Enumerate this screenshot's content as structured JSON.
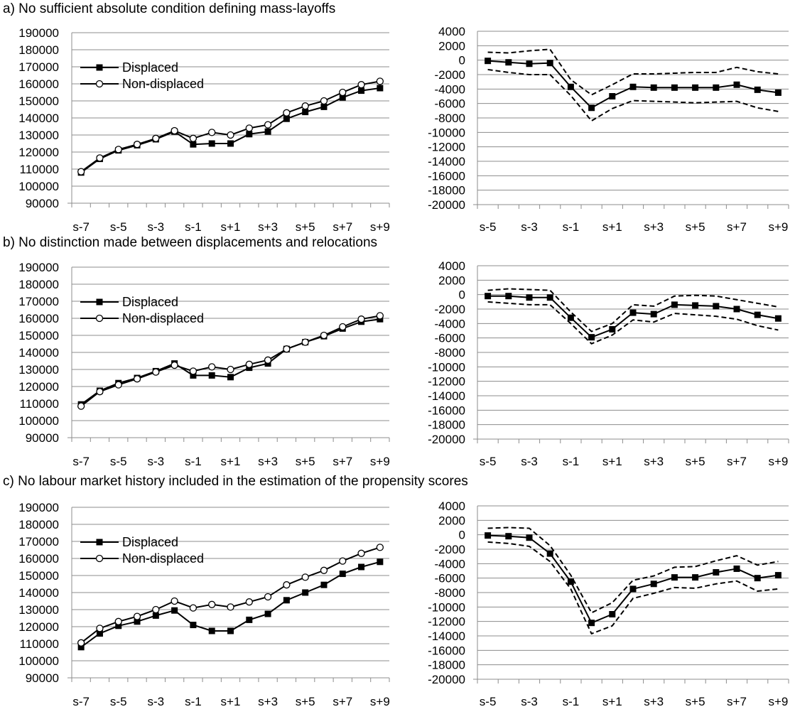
{
  "panels": [
    {
      "title": "a) No sufficient absolute condition defining mass-layoffs"
    },
    {
      "title": "b) No distinction made between displacements and relocations"
    },
    {
      "title": "c) No labour market history included in the estimation of the propensity scores"
    }
  ],
  "chart_data": [
    {
      "type": "line",
      "panel": "a",
      "x": [
        "s-7",
        "s-6",
        "s-5",
        "s-4",
        "s-3",
        "s-2",
        "s-1",
        "s",
        "s+1",
        "s+2",
        "s+3",
        "s+4",
        "s+5",
        "s+6",
        "s+7",
        "s+8",
        "s+9"
      ],
      "x_tick_labels": [
        "s-7",
        "s-5",
        "s-3",
        "s-1",
        "s+1",
        "s+3",
        "s+5",
        "s+7",
        "s+9"
      ],
      "y_ticks": [
        90000,
        100000,
        110000,
        120000,
        130000,
        140000,
        150000,
        160000,
        170000,
        180000,
        190000
      ],
      "ylim": [
        90000,
        190000
      ],
      "grid": true,
      "legend_position": "top-left",
      "series": [
        {
          "name": "Displaced",
          "marker": "filled-square",
          "values": [
            108000,
            116000,
            121000,
            124000,
            127500,
            132000,
            124500,
            125000,
            125000,
            130500,
            132000,
            139500,
            143500,
            146500,
            152000,
            156000,
            157500
          ]
        },
        {
          "name": "Non-displaced",
          "marker": "open-circle",
          "values": [
            108500,
            116500,
            121500,
            124500,
            128000,
            132500,
            128000,
            131500,
            130000,
            134000,
            136000,
            143000,
            147000,
            150000,
            155000,
            159500,
            161500
          ]
        }
      ]
    },
    {
      "type": "line",
      "panel": "a",
      "x": [
        "s-5",
        "s-4",
        "s-3",
        "s-2",
        "s-1",
        "s",
        "s+1",
        "s+2",
        "s+3",
        "s+4",
        "s+5",
        "s+6",
        "s+7",
        "s+8",
        "s+9"
      ],
      "x_tick_labels": [
        "s-5",
        "s-3",
        "s-1",
        "s+1",
        "s+3",
        "s+5",
        "s+7",
        "s+9"
      ],
      "y_ticks": [
        4000,
        2000,
        0,
        -2000,
        -4000,
        -6000,
        -8000,
        -10000,
        -12000,
        -14000,
        -16000,
        -18000,
        -20000
      ],
      "ylim": [
        -20000,
        4000
      ],
      "grid": true,
      "series": [
        {
          "style": "solid",
          "marker": "filled-square",
          "values": [
            -100,
            -300,
            -500,
            -400,
            -3700,
            -6600,
            -5000,
            -3700,
            -3800,
            -3800,
            -3800,
            -3800,
            -3400,
            -4100,
            -4500
          ]
        },
        {
          "style": "dashed",
          "values": [
            1100,
            1000,
            1300,
            1500,
            -2700,
            -4800,
            -3400,
            -1900,
            -1900,
            -1800,
            -1700,
            -1700,
            -1000,
            -1600,
            -1900
          ]
        },
        {
          "style": "dashed",
          "values": [
            -1300,
            -1700,
            -2000,
            -2000,
            -4900,
            -8400,
            -6700,
            -5600,
            -5700,
            -5800,
            -5900,
            -5800,
            -5700,
            -6600,
            -7100
          ]
        }
      ]
    },
    {
      "type": "line",
      "panel": "b",
      "x": [
        "s-7",
        "s-6",
        "s-5",
        "s-4",
        "s-3",
        "s-2",
        "s-1",
        "s",
        "s+1",
        "s+2",
        "s+3",
        "s+4",
        "s+5",
        "s+6",
        "s+7",
        "s+8",
        "s+9"
      ],
      "x_tick_labels": [
        "s-7",
        "s-5",
        "s-3",
        "s-1",
        "s+1",
        "s+3",
        "s+5",
        "s+7",
        "s+9"
      ],
      "y_ticks": [
        90000,
        100000,
        110000,
        120000,
        130000,
        140000,
        150000,
        160000,
        170000,
        180000,
        190000
      ],
      "ylim": [
        90000,
        190000
      ],
      "grid": true,
      "legend_position": "top-left",
      "series": [
        {
          "name": "Displaced",
          "marker": "filled-square",
          "values": [
            109500,
            117500,
            122000,
            125000,
            129000,
            133500,
            126500,
            126500,
            125500,
            131000,
            133500,
            142000,
            146000,
            149500,
            154000,
            158000,
            159500
          ]
        },
        {
          "name": "Non-displaced",
          "marker": "open-circle",
          "values": [
            108500,
            117000,
            121000,
            124500,
            128500,
            132500,
            129000,
            131500,
            130000,
            133000,
            135500,
            142000,
            146000,
            150000,
            155000,
            159500,
            161500
          ]
        }
      ]
    },
    {
      "type": "line",
      "panel": "b",
      "x": [
        "s-5",
        "s-4",
        "s-3",
        "s-2",
        "s-1",
        "s",
        "s+1",
        "s+2",
        "s+3",
        "s+4",
        "s+5",
        "s+6",
        "s+7",
        "s+8",
        "s+9"
      ],
      "x_tick_labels": [
        "s-5",
        "s-3",
        "s-1",
        "s+1",
        "s+3",
        "s+5",
        "s+7",
        "s+9"
      ],
      "y_ticks": [
        4000,
        2000,
        0,
        -2000,
        -4000,
        -6000,
        -8000,
        -10000,
        -12000,
        -14000,
        -16000,
        -18000,
        -20000
      ],
      "ylim": [
        -20000,
        4000
      ],
      "grid": true,
      "series": [
        {
          "style": "solid",
          "marker": "filled-square",
          "values": [
            -200,
            -200,
            -400,
            -400,
            -3200,
            -5900,
            -4800,
            -2500,
            -2700,
            -1400,
            -1500,
            -1600,
            -2000,
            -2800,
            -3300
          ]
        },
        {
          "style": "dashed",
          "values": [
            600,
            800,
            700,
            600,
            -2400,
            -5100,
            -4000,
            -1400,
            -1600,
            -200,
            -100,
            -200,
            -700,
            -1200,
            -1700
          ]
        },
        {
          "style": "dashed",
          "values": [
            -1000,
            -1200,
            -1400,
            -1400,
            -4000,
            -6800,
            -5600,
            -3500,
            -3800,
            -2600,
            -2800,
            -3000,
            -3400,
            -4300,
            -4900
          ]
        }
      ]
    },
    {
      "type": "line",
      "panel": "c",
      "x": [
        "s-7",
        "s-6",
        "s-5",
        "s-4",
        "s-3",
        "s-2",
        "s-1",
        "s",
        "s+1",
        "s+2",
        "s+3",
        "s+4",
        "s+5",
        "s+6",
        "s+7",
        "s+8",
        "s+9"
      ],
      "x_tick_labels": [
        "s-7",
        "s-5",
        "s-3",
        "s-1",
        "s+1",
        "s+3",
        "s+5",
        "s+7",
        "s+9"
      ],
      "y_ticks": [
        90000,
        100000,
        110000,
        120000,
        130000,
        140000,
        150000,
        160000,
        170000,
        180000,
        190000
      ],
      "ylim": [
        90000,
        190000
      ],
      "grid": true,
      "legend_position": "top-left",
      "series": [
        {
          "name": "Displaced",
          "marker": "filled-square",
          "values": [
            108000,
            116000,
            120500,
            123000,
            126500,
            129500,
            121000,
            117500,
            117500,
            124000,
            127500,
            135500,
            140000,
            144500,
            151000,
            155000,
            158000
          ]
        },
        {
          "name": "Non-displaced",
          "marker": "open-circle",
          "values": [
            110500,
            119000,
            123000,
            126000,
            130000,
            135000,
            131000,
            133000,
            131500,
            134500,
            137500,
            144500,
            149000,
            153000,
            158500,
            163000,
            166500
          ]
        }
      ]
    },
    {
      "type": "line",
      "panel": "c",
      "x": [
        "s-5",
        "s-4",
        "s-3",
        "s-2",
        "s-1",
        "s",
        "s+1",
        "s+2",
        "s+3",
        "s+4",
        "s+5",
        "s+6",
        "s+7",
        "s+8",
        "s+9"
      ],
      "x_tick_labels": [
        "s-5",
        "s-3",
        "s-1",
        "s+1",
        "s+3",
        "s+5",
        "s+7",
        "s+9"
      ],
      "y_ticks": [
        4000,
        2000,
        0,
        -2000,
        -4000,
        -6000,
        -8000,
        -10000,
        -12000,
        -14000,
        -16000,
        -18000,
        -20000
      ],
      "ylim": [
        -20000,
        4000
      ],
      "grid": true,
      "series": [
        {
          "style": "solid",
          "marker": "filled-square",
          "values": [
            -100,
            -200,
            -400,
            -2600,
            -6500,
            -12200,
            -11000,
            -7500,
            -6800,
            -5900,
            -5900,
            -5200,
            -4700,
            -6000,
            -5600
          ]
        },
        {
          "style": "dashed",
          "values": [
            900,
            1000,
            900,
            -1500,
            -5600,
            -10800,
            -9400,
            -6300,
            -5700,
            -4500,
            -4400,
            -3600,
            -2900,
            -4200,
            -3700
          ]
        },
        {
          "style": "dashed",
          "values": [
            -1000,
            -1200,
            -1600,
            -3700,
            -7500,
            -13700,
            -12600,
            -8800,
            -8100,
            -7300,
            -7400,
            -6800,
            -6400,
            -7800,
            -7500
          ]
        }
      ]
    }
  ]
}
